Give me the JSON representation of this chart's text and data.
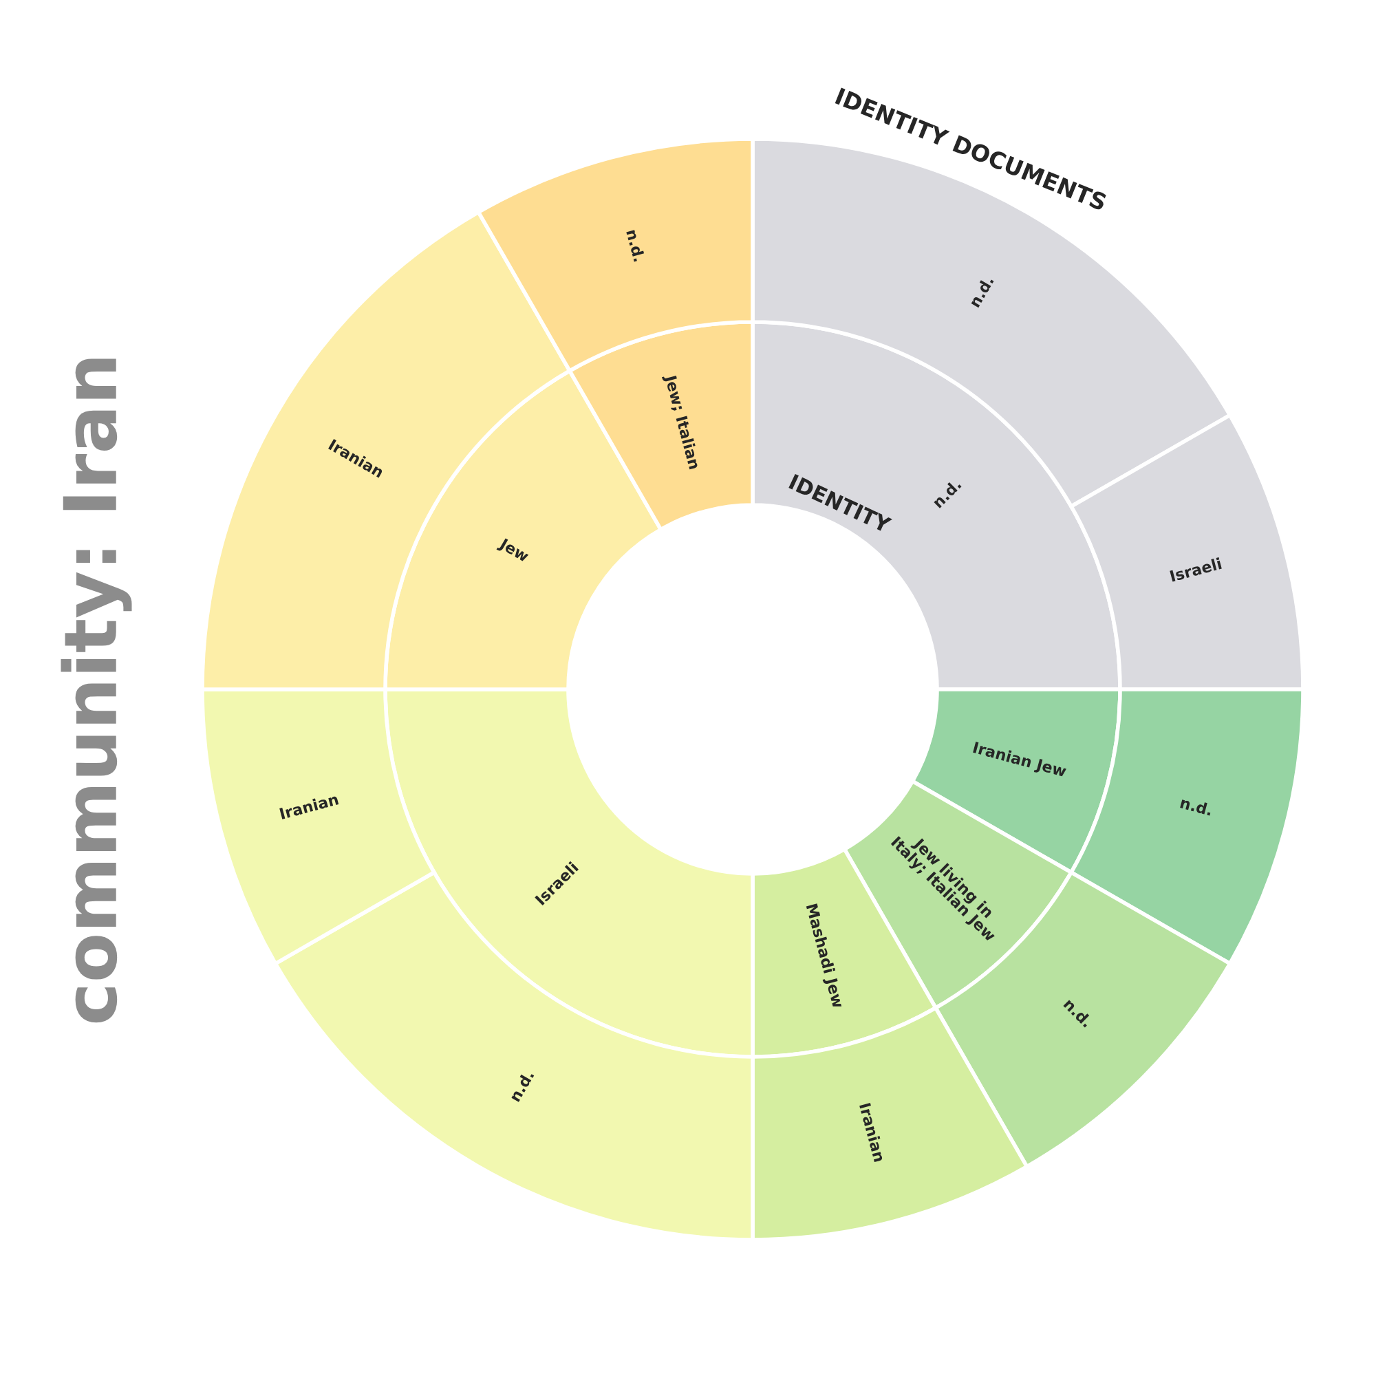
{
  "chart_data": {
    "type": "donut",
    "annotations": [
      "community: Iran"
    ],
    "series": [
      {
        "name": "IDENTITY",
        "values": [
          25,
          8.3,
          8.4,
          8.3,
          25,
          16.7,
          8.3
        ],
        "value_labels": [
          "n.d.",
          "Iranian Jew",
          "Jew living in\nItaly; Italian Jew",
          "Mashadi Jew",
          "Israeli",
          "Jew",
          "Jew; Italian"
        ],
        "colors": [
          "#dadadf",
          "#96d4a3",
          "#b8e2a0",
          "#d5eea0",
          "#f2f8b0",
          "#fdeea8",
          "#fedd92"
        ]
      },
      {
        "name": "IDENTITY DOCUMENTS",
        "values": [
          16.7,
          8.3,
          8.3,
          8.4,
          8.3,
          16.7,
          8.3,
          16.7,
          8.3
        ],
        "value_labels": [
          "n.d.",
          "Israeli",
          "n.d.",
          "n.d.",
          "Iranian",
          "n.d.",
          "Iranian",
          "Iranian",
          "n.d."
        ],
        "colors": [
          "#dadadf",
          "#dadadf",
          "#96d4a3",
          "#b8e2a0",
          "#d5eea0",
          "#f2f8b0",
          "#f2f8b0",
          "#fdeea8",
          "#fedd92"
        ]
      }
    ]
  }
}
